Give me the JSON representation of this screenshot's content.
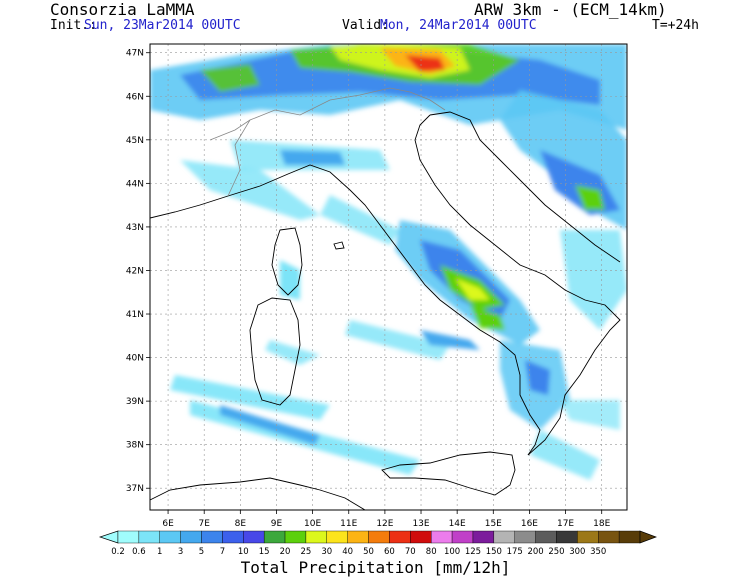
{
  "header": {
    "org": "Consorzia LaMMA",
    "model": "ARW 3km - (ECM_14km)",
    "init_label": "Init.:",
    "init_value": "Sun, 23Mar2014 00UTC",
    "valid_label": "Valid:",
    "valid_value": "Mon, 24Mar2014 00UTC",
    "forecast_hour": "T=+24h"
  },
  "map": {
    "lon_range": [
      5.5,
      18.7
    ],
    "lat_range": [
      36.5,
      47.2
    ],
    "lat_ticks": [
      "47N",
      "46N",
      "45N",
      "44N",
      "43N",
      "42N",
      "41N",
      "40N",
      "39N",
      "38N",
      "37N"
    ],
    "lat_values": [
      47,
      46,
      45,
      44,
      43,
      42,
      41,
      40,
      39,
      38,
      37
    ],
    "lon_ticks": [
      "6E",
      "7E",
      "8E",
      "9E",
      "10E",
      "11E",
      "12E",
      "13E",
      "14E",
      "15E",
      "16E",
      "17E",
      "18E"
    ],
    "lon_values": [
      6,
      7,
      8,
      9,
      10,
      11,
      12,
      13,
      14,
      15,
      16,
      17,
      18
    ]
  },
  "colorbar": {
    "labels": [
      "0.2",
      "0.6",
      "1",
      "3",
      "5",
      "7",
      "10",
      "15",
      "20",
      "25",
      "30",
      "40",
      "50",
      "60",
      "70",
      "80",
      "100",
      "125",
      "150",
      "175",
      "200",
      "250",
      "300",
      "350"
    ],
    "colors": [
      "#a0fcfc",
      "#7ce4f8",
      "#5cc8f4",
      "#44a8ee",
      "#3c84ec",
      "#3c60ec",
      "#4848e8",
      "#3ca83c",
      "#5cd00c",
      "#dcf81c",
      "#fce41c",
      "#fcb414",
      "#f47c0c",
      "#ec3014",
      "#d00c0c",
      "#ec7cec",
      "#c040c8",
      "#7c1c9c",
      "#b4b4b4",
      "#8c8c8c",
      "#5c5c5c",
      "#383838",
      "#9c7818",
      "#785410",
      "#583c08"
    ],
    "unit_label": "Total Precipitation [mm/12h]"
  }
}
